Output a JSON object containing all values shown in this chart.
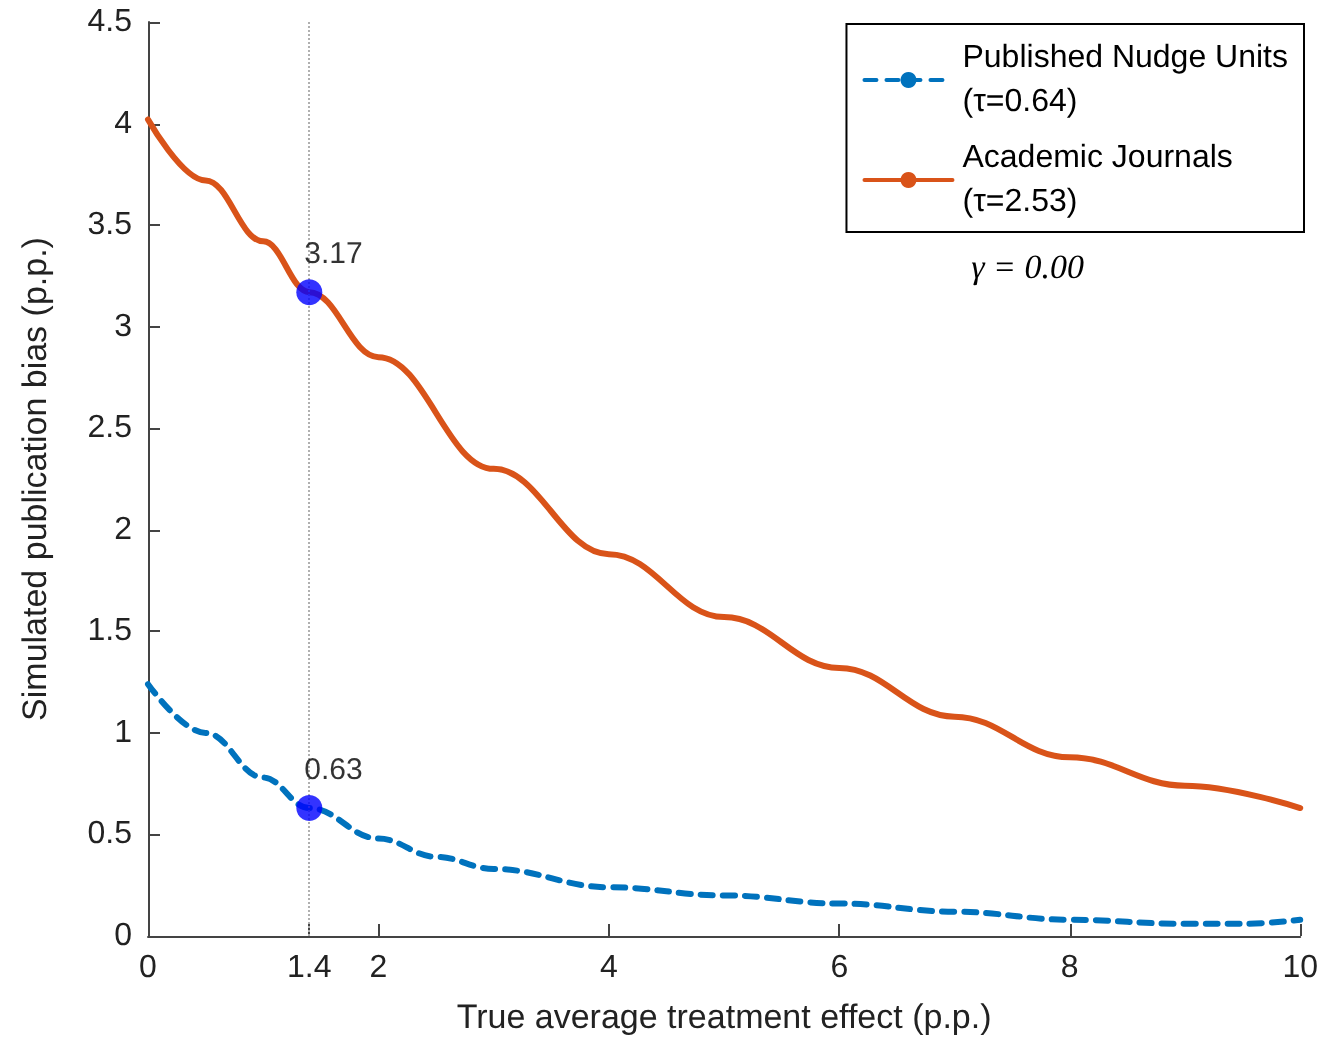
{
  "chart_data": {
    "type": "line",
    "xlabel": "True average treatment effect (p.p.)",
    "ylabel": "Simulated publication bias (p.p.)",
    "xlim": [
      0,
      10
    ],
    "xticks": [
      0,
      1.4,
      2,
      4,
      6,
      8,
      10
    ],
    "ylim": [
      0,
      4.5
    ],
    "yticks": [
      0,
      0.5,
      1,
      1.5,
      2,
      2.5,
      3,
      3.5,
      4,
      4.5
    ],
    "grid": false,
    "legend": "top right",
    "marker": "none",
    "series": [
      {
        "name": "Published Nudge Units\n(τ=0.64)",
        "color": "#0072bd",
        "line_style": "dashed",
        "x": [
          0,
          0.5,
          1,
          1.4,
          2,
          2.5,
          3,
          4,
          5,
          6,
          7,
          8,
          9,
          9.5,
          10
        ],
        "values": [
          1.24,
          1.0,
          0.78,
          0.63,
          0.48,
          0.39,
          0.33,
          0.24,
          0.2,
          0.16,
          0.12,
          0.08,
          0.06,
          0.06,
          0.08
        ]
      },
      {
        "name": "Academic Journals\n(τ=2.53)",
        "color": "#d95319",
        "line_style": "solid",
        "x": [
          0,
          0.5,
          1,
          1.4,
          2,
          3,
          4,
          5,
          6,
          7,
          8,
          9,
          10
        ],
        "values": [
          4.02,
          3.72,
          3.42,
          3.17,
          2.85,
          2.3,
          1.88,
          1.57,
          1.32,
          1.08,
          0.88,
          0.74,
          0.63
        ]
      },
      {
        "type": "scatter",
        "marker": "circle",
        "color": "#0000ff",
        "x": [
          1.4,
          1.4
        ],
        "values": [
          3.17,
          0.63
        ],
        "value_labels": [
          "3.17",
          "0.63"
        ]
      }
    ],
    "ref_lines": [
      {
        "axis": "x",
        "value": 1.4,
        "color": "#b0b0b0",
        "line_style": "dotted"
      }
    ],
    "annotations": [
      "γ = 0.00"
    ]
  }
}
